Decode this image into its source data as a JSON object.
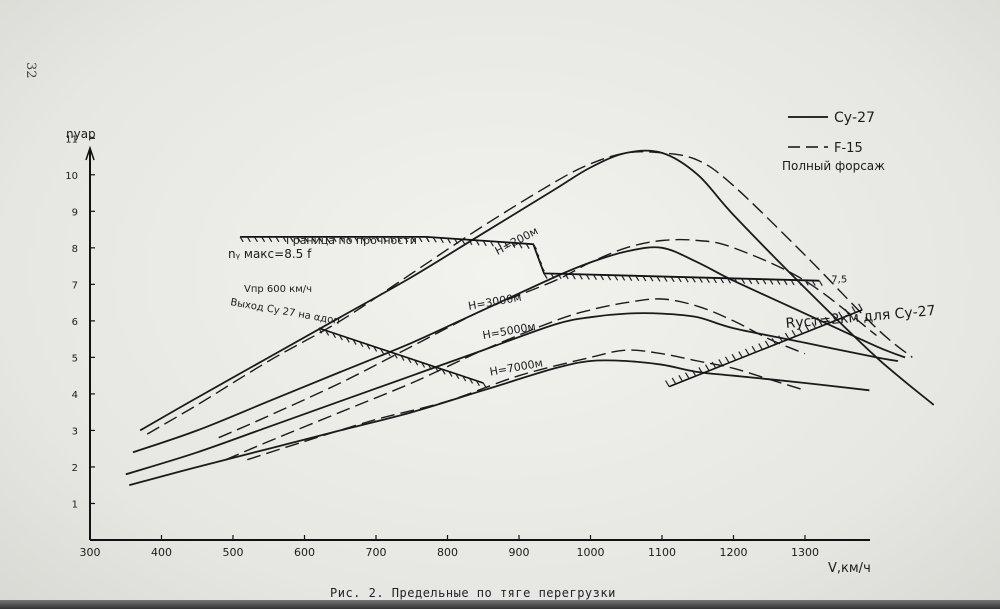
{
  "page_number": "32",
  "caption": "Рис. 2. Предельные по тяге перегрузки",
  "chart_data": {
    "type": "line",
    "xlabel": "V,км/ч",
    "ylabel": "nуар",
    "xlim": [
      300,
      1500
    ],
    "ylim": [
      0,
      11.5
    ],
    "x_ticks": [
      300,
      400,
      500,
      600,
      700,
      800,
      900,
      1000,
      1100,
      1200,
      1300
    ],
    "y_ticks": [
      1,
      2,
      3,
      4,
      5,
      6,
      7,
      8,
      9,
      10,
      11
    ],
    "grid": false,
    "legend_position": "top-right",
    "legend": [
      {
        "label": "Су-27",
        "style": "solid"
      },
      {
        "label": "F-15",
        "style": "dashed"
      },
      {
        "label": "Полный форсаж",
        "style": "none"
      }
    ],
    "series": [
      {
        "name": "Су-27",
        "altitude": "H=200м",
        "dash": false,
        "x": [
          370,
          450,
          550,
          650,
          750,
          850,
          950,
          1000,
          1050,
          1100,
          1150,
          1200,
          1300,
          1400,
          1480
        ],
        "y": [
          3.0,
          3.9,
          5.0,
          6.1,
          7.2,
          8.4,
          9.6,
          10.2,
          10.6,
          10.6,
          10.0,
          8.9,
          6.9,
          5.0,
          3.7
        ]
      },
      {
        "name": "F-15",
        "altitude": "H=200м",
        "dash": true,
        "x": [
          380,
          450,
          550,
          650,
          750,
          850,
          950,
          1000,
          1050,
          1100,
          1150,
          1200,
          1300,
          1400,
          1450
        ],
        "y": [
          2.9,
          3.7,
          4.9,
          6.0,
          7.3,
          8.6,
          9.8,
          10.3,
          10.6,
          10.6,
          10.4,
          9.7,
          7.8,
          5.8,
          5.0
        ]
      },
      {
        "name": "Су-27",
        "altitude": "H=3000м",
        "dash": false,
        "x": [
          360,
          450,
          550,
          650,
          750,
          850,
          950,
          1000,
          1050,
          1100,
          1150,
          1200,
          1300,
          1400,
          1440
        ],
        "y": [
          2.4,
          3.0,
          3.8,
          4.6,
          5.4,
          6.3,
          7.2,
          7.6,
          7.9,
          8.0,
          7.6,
          7.1,
          6.2,
          5.3,
          5.0
        ]
      },
      {
        "name": "F-15",
        "altitude": "H=3000м",
        "dash": true,
        "x": [
          480,
          550,
          650,
          750,
          850,
          950,
          1000,
          1050,
          1100,
          1150,
          1200,
          1300,
          1400
        ],
        "y": [
          2.8,
          3.4,
          4.3,
          5.3,
          6.3,
          7.1,
          7.6,
          8.0,
          8.2,
          8.2,
          8.0,
          7.1,
          5.6
        ]
      },
      {
        "name": "Су-27",
        "altitude": "H=5000м",
        "dash": false,
        "x": [
          350,
          450,
          550,
          650,
          750,
          850,
          950,
          1000,
          1050,
          1100,
          1150,
          1200,
          1300,
          1400,
          1430
        ],
        "y": [
          1.8,
          2.4,
          3.1,
          3.8,
          4.5,
          5.2,
          5.9,
          6.1,
          6.2,
          6.2,
          6.1,
          5.8,
          5.4,
          5.0,
          4.9
        ]
      },
      {
        "name": "F-15",
        "altitude": "H=5000м",
        "dash": true,
        "x": [
          490,
          550,
          650,
          750,
          850,
          950,
          1000,
          1050,
          1100,
          1150,
          1200,
          1250,
          1300
        ],
        "y": [
          2.2,
          2.7,
          3.5,
          4.3,
          5.2,
          6.0,
          6.3,
          6.5,
          6.6,
          6.4,
          6.0,
          5.5,
          5.1
        ]
      },
      {
        "name": "Су-27",
        "altitude": "H=7000м",
        "dash": false,
        "x": [
          355,
          450,
          550,
          650,
          750,
          850,
          950,
          1000,
          1050,
          1100,
          1150,
          1200,
          1300,
          1390
        ],
        "y": [
          1.5,
          2.0,
          2.5,
          3.0,
          3.5,
          4.1,
          4.7,
          4.9,
          4.9,
          4.8,
          4.6,
          4.5,
          4.3,
          4.1
        ]
      },
      {
        "name": "F-15",
        "altitude": "H=7000м",
        "dash": true,
        "x": [
          520,
          600,
          700,
          800,
          900,
          1000,
          1050,
          1100,
          1150,
          1200,
          1250,
          1300
        ],
        "y": [
          2.2,
          2.7,
          3.3,
          3.8,
          4.5,
          5.0,
          5.2,
          5.1,
          4.9,
          4.7,
          4.4,
          4.1
        ]
      }
    ],
    "strength_limit": {
      "label": "Граница по прочности",
      "ny_label": "nᵧ макс=8.5 f",
      "x": [
        510,
        770,
        920,
        920,
        935,
        1320
      ],
      "y": [
        8.3,
        8.3,
        8.1,
        8.1,
        7.3,
        7.1
      ],
      "end_label": "7,5"
    },
    "v600_line": {
      "label_1": "Vпр 600 км/ч",
      "label_2": "Выход Су 27 на αдоп",
      "x": [
        620,
        850
      ],
      "y": [
        5.8,
        4.3
      ]
    },
    "radius_line": {
      "label": "Rуст=2км для Су-27",
      "x": [
        1110,
        1380
      ],
      "y": [
        4.2,
        6.3
      ]
    },
    "annotations": [
      {
        "text": "H=200м",
        "x": 870,
        "y": 7.8,
        "rotate": -28
      },
      {
        "text": "H=3000м",
        "x": 830,
        "y": 6.3,
        "rotate": -10
      },
      {
        "text": "H=5000м",
        "x": 850,
        "y": 5.5,
        "rotate": -10
      },
      {
        "text": "H=7000м",
        "x": 860,
        "y": 4.5,
        "rotate": -10
      }
    ]
  }
}
